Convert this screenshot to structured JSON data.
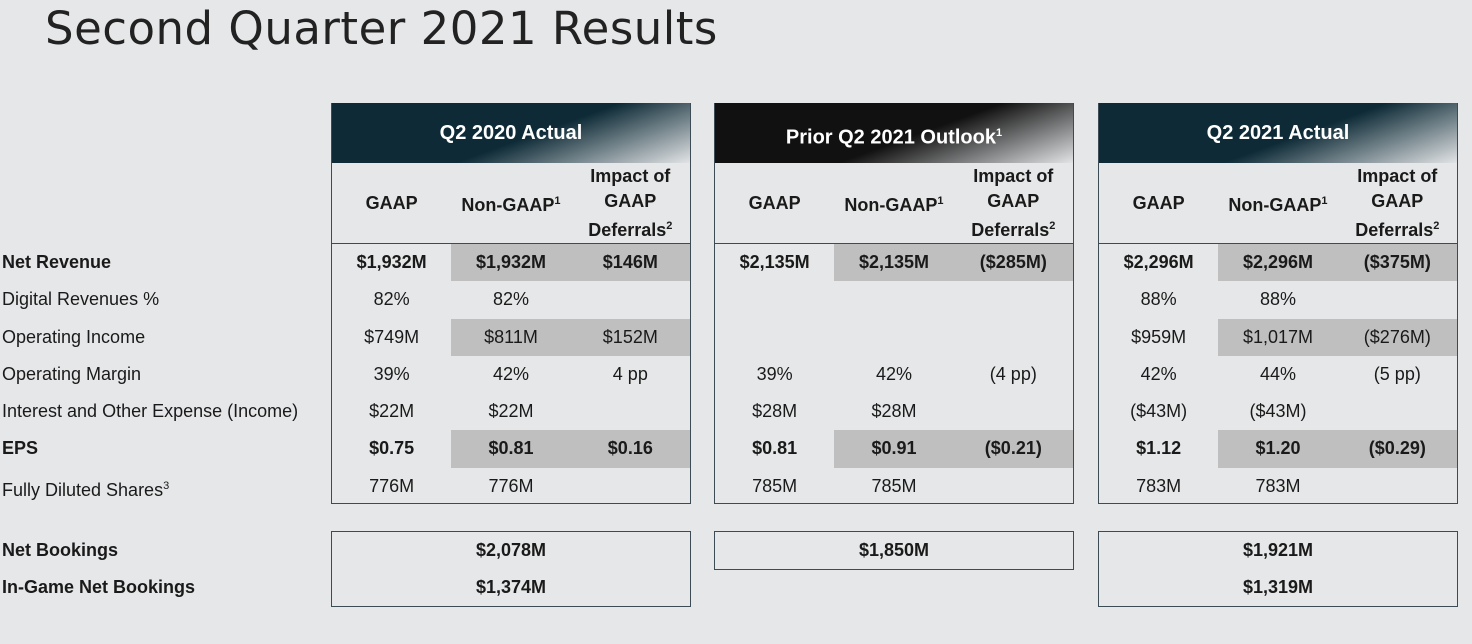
{
  "title": "Second Quarter 2021 Results",
  "row_labels": [
    "Net Revenue",
    "Digital Revenues %",
    "Operating Income",
    "Operating Margin",
    "Interest and Other Expense (Income)",
    "EPS",
    "Fully Diluted Shares"
  ],
  "row_label_sup": {
    "6": "3"
  },
  "bold_rows": [
    0,
    5
  ],
  "shaded_rows": [
    0,
    2,
    5
  ],
  "booking_labels": [
    "Net Bookings",
    "In-Game Net Bookings"
  ],
  "columns": {
    "gaap": "GAAP",
    "nongaap": "Non-GAAP",
    "nongaap_sup": "1",
    "impact": "Impact of GAAP Deferrals",
    "impact_sup": "2"
  },
  "panels": [
    {
      "title": "Q2 2020 Actual",
      "title_sup": "",
      "style": "teal",
      "rows": [
        [
          "$1,932M",
          "$1,932M",
          "$146M"
        ],
        [
          "82%",
          "82%",
          ""
        ],
        [
          "$749M",
          "$811M",
          "$152M"
        ],
        [
          "39%",
          "42%",
          "4 pp"
        ],
        [
          "$22M",
          "$22M",
          ""
        ],
        [
          "$0.75",
          "$0.81",
          "$0.16"
        ],
        [
          "776M",
          "776M",
          ""
        ]
      ],
      "bookings": [
        "$2,078M",
        "$1,374M"
      ]
    },
    {
      "title": "Prior Q2 2021 Outlook",
      "title_sup": "1",
      "style": "black",
      "rows": [
        [
          "$2,135M",
          "$2,135M",
          "($285M)"
        ],
        [
          "",
          "",
          ""
        ],
        [
          "",
          "",
          ""
        ],
        [
          "39%",
          "42%",
          "(4 pp)"
        ],
        [
          "$28M",
          "$28M",
          ""
        ],
        [
          "$0.81",
          "$0.91",
          "($0.21)"
        ],
        [
          "785M",
          "785M",
          ""
        ]
      ],
      "bookings": [
        "$1,850M"
      ]
    },
    {
      "title": "Q2 2021 Actual",
      "title_sup": "",
      "style": "teal",
      "rows": [
        [
          "$2,296M",
          "$2,296M",
          "($375M)"
        ],
        [
          "88%",
          "88%",
          ""
        ],
        [
          "$959M",
          "$1,017M",
          "($276M)"
        ],
        [
          "42%",
          "44%",
          "(5 pp)"
        ],
        [
          "($43M)",
          "($43M)",
          ""
        ],
        [
          "$1.12",
          "$1.20",
          "($0.29)"
        ],
        [
          "783M",
          "783M",
          ""
        ]
      ],
      "bookings": [
        "$1,921M",
        "$1,319M"
      ]
    }
  ],
  "colors": {
    "teal": "#0d2a36",
    "shade": "#bfbfbf",
    "background": "#e6e7e8"
  }
}
